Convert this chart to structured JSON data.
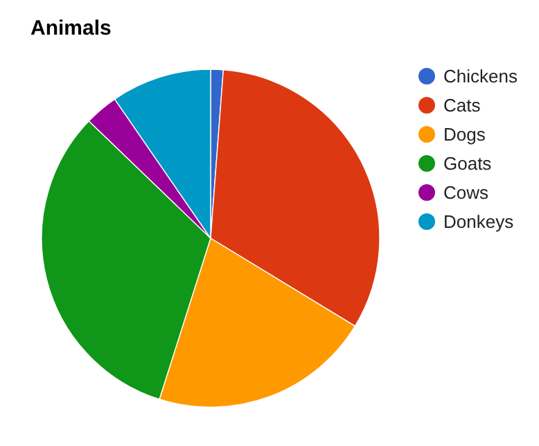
{
  "chart_data": {
    "type": "pie",
    "title": "Animals",
    "categories": [
      "Chickens",
      "Cats",
      "Dogs",
      "Goats",
      "Cows",
      "Donkeys"
    ],
    "values": [
      1.2,
      32.5,
      21.2,
      32.3,
      3.2,
      9.6
    ],
    "colors": [
      "#3366cc",
      "#dc3912",
      "#ff9900",
      "#109618",
      "#990099",
      "#0099c6"
    ],
    "legend": "right"
  }
}
